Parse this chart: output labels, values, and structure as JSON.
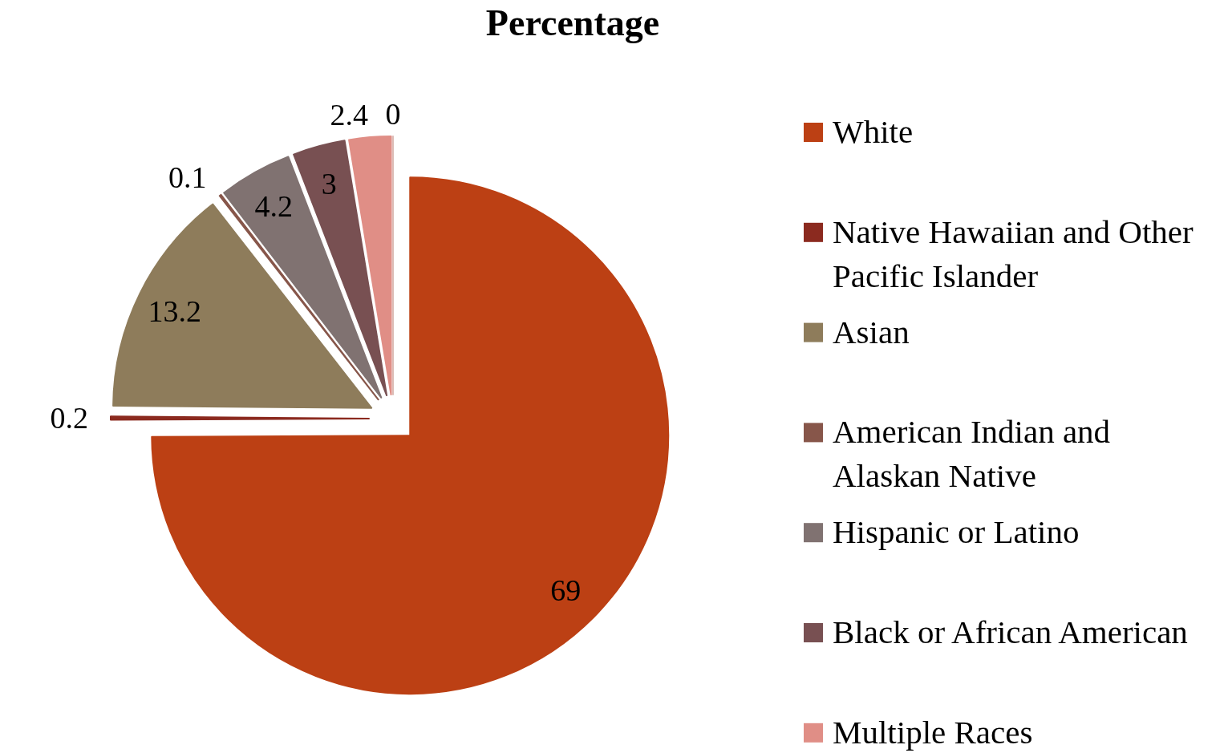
{
  "chart_data": {
    "type": "pie",
    "title": "Percentage",
    "categories": [
      "White",
      "Native Hawaiian and Other Pacific Islander",
      "Asian",
      "American Indian and Alaskan Native",
      "Hispanic or Latino",
      "Black or African American",
      "Multiple Races",
      null
    ],
    "values": [
      69,
      0.2,
      13.2,
      0.1,
      4.2,
      3,
      2.4,
      0
    ],
    "value_labels": [
      "69",
      "0.2",
      "13.2",
      "0.1",
      "4.2",
      "3",
      "2.4",
      "0"
    ],
    "colors": [
      "#bc4014",
      "#8b2a1f",
      "#8e7c5b",
      "#87564a",
      "#807271",
      "#785052",
      "#e08e86",
      "#dcbcb6"
    ],
    "data_labels": true,
    "legend": "right"
  }
}
